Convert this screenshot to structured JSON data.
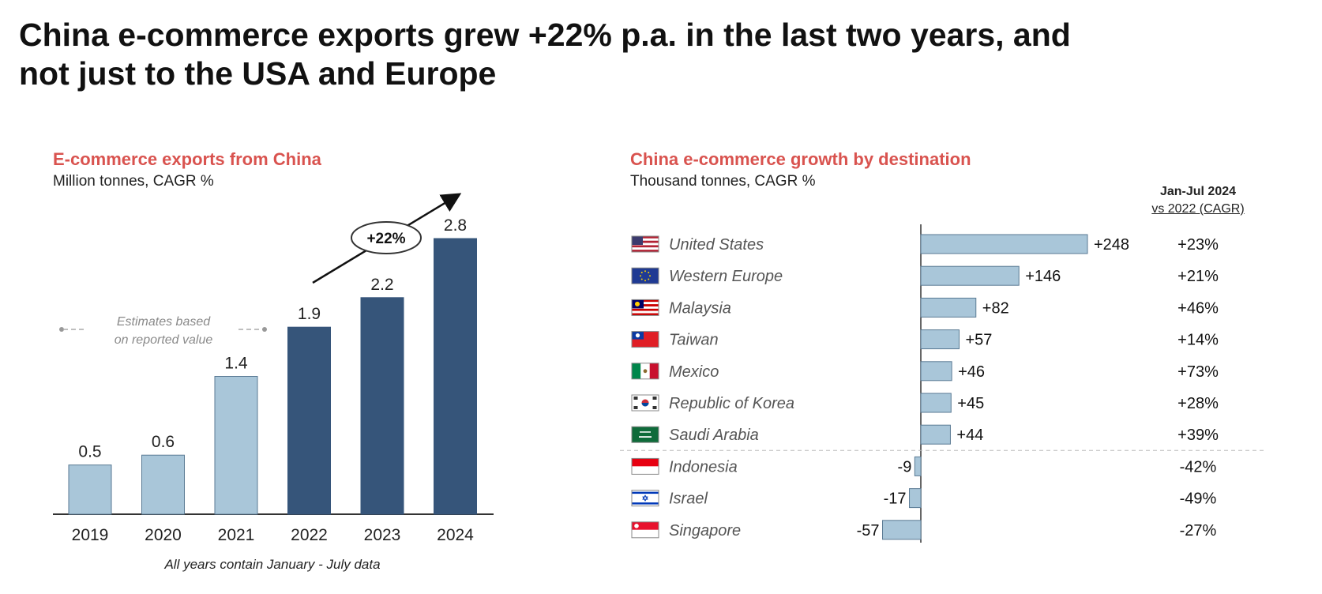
{
  "title": {
    "line1": "China e-commerce exports grew +22% p.a. in the last two years, and",
    "line2": "not just to the USA and Europe"
  },
  "colors": {
    "title_accent": "#d9534f",
    "bar_light": "#a9c6d9",
    "bar_dark": "#36557a",
    "bar_border": "#5a7a94"
  },
  "chart_data": [
    {
      "type": "bar",
      "title": "E-commerce exports from China",
      "subtitle": "Million tonnes, CAGR %",
      "categories": [
        "2019",
        "2020",
        "2021",
        "2022",
        "2023",
        "2024"
      ],
      "values": [
        0.5,
        0.6,
        1.4,
        1.9,
        2.2,
        2.8
      ],
      "value_labels": [
        "0.5",
        "0.6",
        "1.4",
        "1.9",
        "2.2",
        "2.8"
      ],
      "highlight": [
        false,
        false,
        false,
        true,
        true,
        true
      ],
      "ylim": [
        0,
        2.8
      ],
      "grid": false,
      "annotations": {
        "cagr": "+22%",
        "estimates_line1": "Estimates based",
        "estimates_line2": "on reported value",
        "footnote": "All years contain January - July data"
      }
    },
    {
      "type": "bar",
      "orientation": "horizontal",
      "title": "China e-commerce growth by destination",
      "subtitle": "Thousand tonnes, CAGR %",
      "column_header": {
        "line1": "Jan-Jul 2024",
        "line2": "vs 2022 (CAGR)"
      },
      "categories": [
        "United States",
        "Western Europe",
        "Malaysia",
        "Taiwan",
        "Mexico",
        "Republic of Korea",
        "Saudi Arabia",
        "Indonesia",
        "Israel",
        "Singapore"
      ],
      "flag_icons": [
        "us-flag-icon",
        "eu-flag-icon",
        "malaysia-flag-icon",
        "taiwan-flag-icon",
        "mexico-flag-icon",
        "korea-flag-icon",
        "saudi-arabia-flag-icon",
        "indonesia-flag-icon",
        "israel-flag-icon",
        "singapore-flag-icon"
      ],
      "values": [
        248,
        146,
        82,
        57,
        46,
        45,
        44,
        -9,
        -17,
        -57
      ],
      "value_labels": [
        "+248",
        "+146",
        "+82",
        "+57",
        "+46",
        "+45",
        "+44",
        "-9",
        "-17",
        "-57"
      ],
      "cagr": [
        "+23%",
        "+21%",
        "+46%",
        "+14%",
        "+73%",
        "+28%",
        "+39%",
        "-42%",
        "-49%",
        "-27%"
      ],
      "grid": false
    }
  ]
}
